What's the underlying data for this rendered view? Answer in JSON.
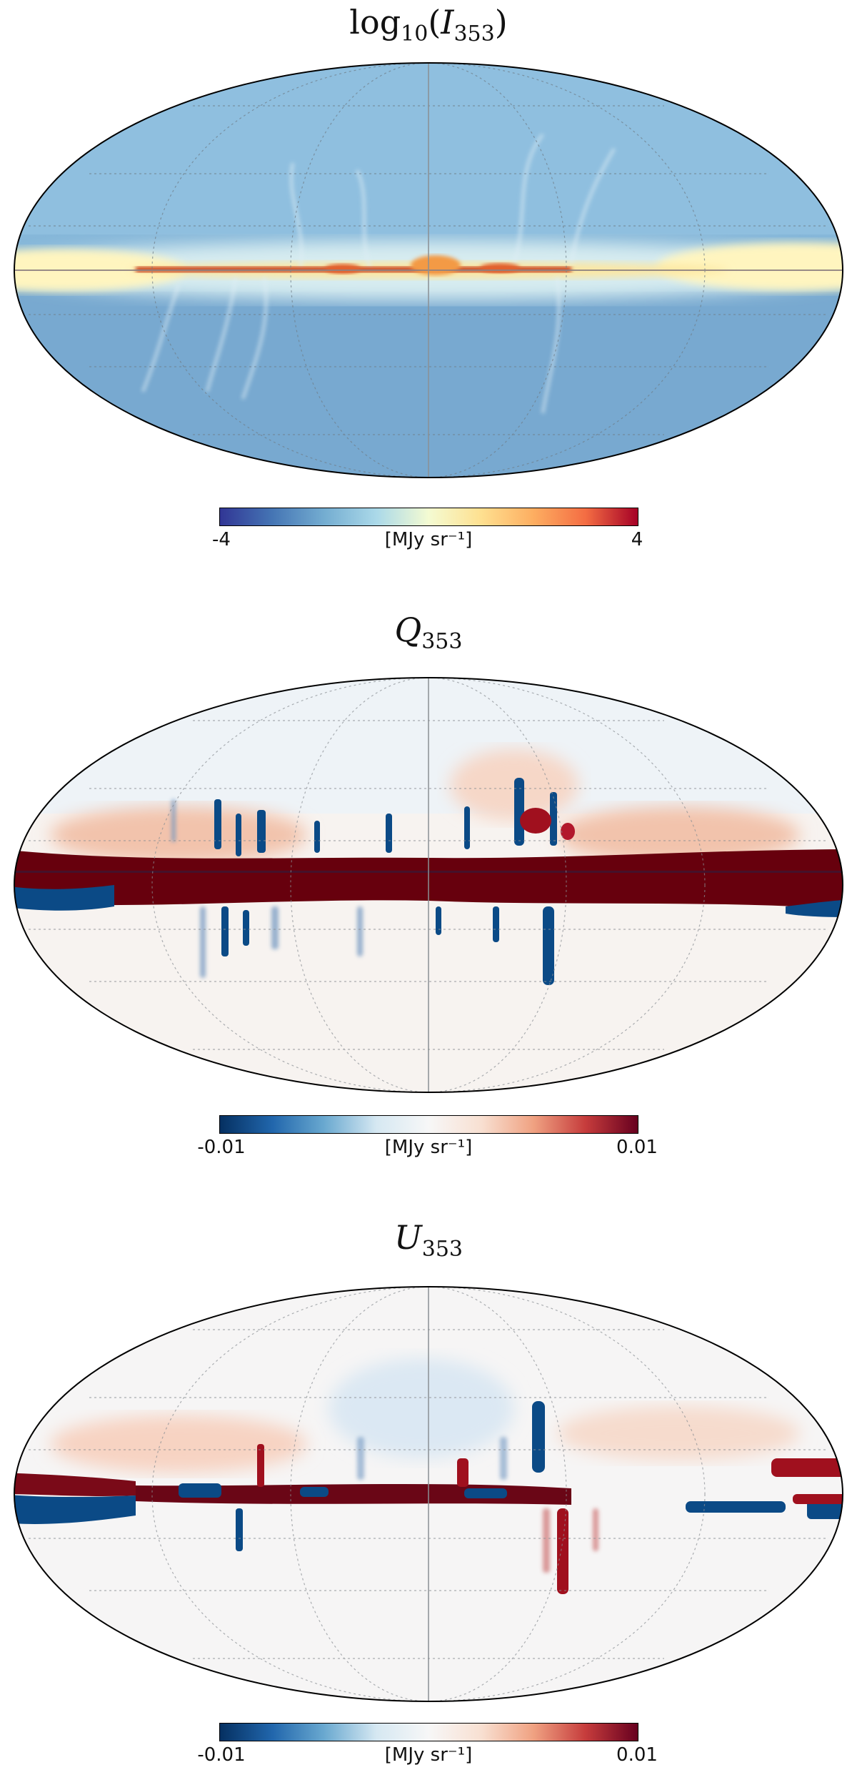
{
  "panels": [
    {
      "title_main": "log",
      "title_sub": "10",
      "title_open": "(",
      "title_var": "I",
      "title_var_sub": "353",
      "title_close": ")",
      "colorbar": {
        "min_label": "-4",
        "max_label": "4",
        "unit": "[MJy sr⁻¹]",
        "colormap": "RdYlBu_r",
        "range": [
          -4,
          4
        ]
      },
      "colors": {
        "background": "#7fb2d6",
        "band": "#fff3b0",
        "core": "#c0392b"
      }
    },
    {
      "title_var": "Q",
      "title_var_sub": "353",
      "colorbar": {
        "min_label": "-0.01",
        "max_label": "0.01",
        "unit": "[MJy sr⁻¹]",
        "colormap": "RdBu_r",
        "range": [
          -0.01,
          0.01
        ]
      },
      "colors": {
        "background": "#f4f1ee",
        "band": "#67000d",
        "negative": "#0b4a86"
      }
    },
    {
      "title_var": "U",
      "title_var_sub": "353",
      "colorbar": {
        "min_label": "-0.01",
        "max_label": "0.01",
        "unit": "[MJy sr⁻¹]",
        "colormap": "RdBu_r",
        "range": [
          -0.01,
          0.01
        ]
      },
      "colors": {
        "background": "#f5f4f4",
        "band": "#7a0a18",
        "negative": "#0b4a86"
      }
    }
  ]
}
